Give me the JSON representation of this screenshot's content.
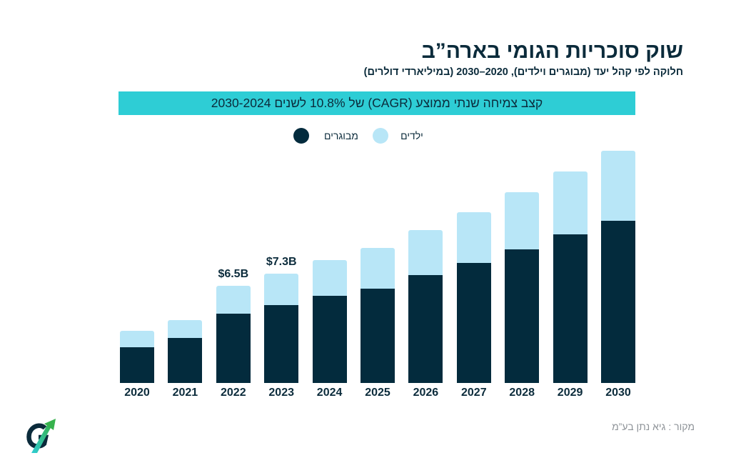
{
  "chart_data": {
    "type": "bar",
    "stacked": true,
    "title": "שוק סוכריות הגומי בארה”ב",
    "subtitle": "חלוקה לפי קהל יעד (מבוגרים וילדים), 2020–2030 (במיליארדי דולרים)",
    "annotation": "קצב צמיחה שנתי ממוצע (CAGR) של 10.8% לשנים 2030-2024",
    "categories": [
      "2020",
      "2021",
      "2022",
      "2023",
      "2024",
      "2025",
      "2026",
      "2027",
      "2028",
      "2029",
      "2030"
    ],
    "series": [
      {
        "name": "מבוגרים",
        "color": "#032b3d",
        "values": [
          2.4,
          3.0,
          4.6,
          5.2,
          5.8,
          6.3,
          7.2,
          8.0,
          8.9,
          9.9,
          10.8
        ]
      },
      {
        "name": "ילדים",
        "color": "#b8e6f7",
        "values": [
          1.1,
          1.2,
          1.9,
          2.1,
          2.4,
          2.7,
          3.0,
          3.4,
          3.8,
          4.2,
          4.7
        ]
      }
    ],
    "data_labels": [
      {
        "category": "2022",
        "text": "$6.5B"
      },
      {
        "category": "2023",
        "text": "$7.3B"
      }
    ],
    "xlabel": "",
    "ylabel": "",
    "ylim": [
      0,
      16
    ],
    "grid": false,
    "legend": "top"
  },
  "source": "מקור : גיא נתן בע”מ",
  "colors": {
    "accent": "#2ecdd5",
    "text": "#0b2b3b",
    "muted": "#8e9398"
  },
  "logo": {
    "lettering": "G",
    "icon": "growth-arrow-logo"
  }
}
